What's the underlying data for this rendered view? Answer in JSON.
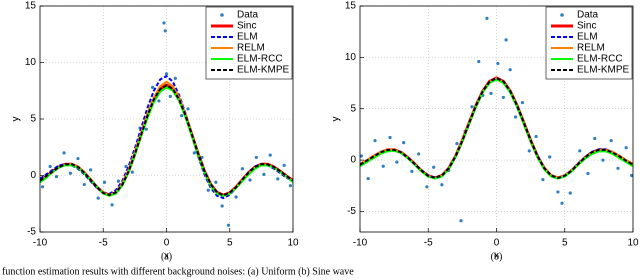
{
  "caption": "function estimation results with different background noises: (a) Uniform (b) Sine wave",
  "chart_data": [
    {
      "type": "line",
      "subcaption": "(a)",
      "xlabel": "x",
      "ylabel": "y",
      "xlim": [
        -10,
        10
      ],
      "ylim": [
        -5,
        15
      ],
      "xticks": [
        -10,
        -5,
        0,
        5,
        10
      ],
      "yticks": [
        -5,
        0,
        5,
        10,
        15
      ],
      "grid": true,
      "legend": "upper right",
      "x": [
        -10,
        -9.5,
        -9,
        -8.5,
        -8,
        -7.5,
        -7,
        -6.5,
        -6,
        -5.5,
        -5,
        -4.5,
        -4,
        -3.5,
        -3,
        -2.5,
        -2,
        -1.5,
        -1,
        -0.5,
        0,
        0.5,
        1,
        1.5,
        2,
        2.5,
        3,
        3.5,
        4,
        4.5,
        5,
        5.5,
        6,
        6.5,
        7,
        7.5,
        8,
        8.5,
        9,
        9.5,
        10
      ],
      "series": [
        {
          "name": "Data",
          "color": "#2f7fc1",
          "mode": "markers",
          "x": [
            -9.8,
            -9.2,
            -8.7,
            -8.1,
            -7.6,
            -7.0,
            -6.5,
            -6.0,
            -5.4,
            -4.9,
            -4.3,
            -3.8,
            -3.2,
            -2.7,
            -2.1,
            -1.6,
            -1.1,
            -0.6,
            -0.2,
            -0.1,
            0.0,
            0.3,
            0.7,
            1.2,
            1.7,
            2.2,
            2.8,
            3.3,
            3.9,
            4.4,
            4.9,
            5.5,
            6.0,
            6.6,
            7.1,
            7.7,
            8.2,
            8.8,
            9.3,
            9.8
          ],
          "values": [
            -1.0,
            0.8,
            -0.1,
            2.0,
            0.2,
            1.5,
            -0.8,
            0.5,
            -2.0,
            -0.6,
            -2.6,
            -0.5,
            0.8,
            0.3,
            4.2,
            4.1,
            7.8,
            6.6,
            13.5,
            12.8,
            9.0,
            7.0,
            8.6,
            5.3,
            5.9,
            2.0,
            1.6,
            -1.3,
            -0.6,
            -2.7,
            -4.4,
            -1.9,
            0.6,
            -0.4,
            1.6,
            0.1,
            1.8,
            -0.3,
            0.9,
            -0.9
          ]
        },
        {
          "name": "Sinc",
          "color": "#ff0000",
          "mode": "lines",
          "dash": false,
          "values": [
            -0.44,
            -0.06,
            0.37,
            0.75,
            0.99,
            1.0,
            0.75,
            0.26,
            -0.37,
            -1.03,
            -1.53,
            -1.74,
            -1.51,
            -0.8,
            0.38,
            1.92,
            3.64,
            5.32,
            6.73,
            7.67,
            8.0,
            7.67,
            6.73,
            5.32,
            3.64,
            1.92,
            0.38,
            -0.8,
            -1.51,
            -1.74,
            -1.53,
            -1.03,
            -0.37,
            0.26,
            0.75,
            1.0,
            0.99,
            0.75,
            0.37,
            -0.06,
            -0.44
          ]
        },
        {
          "name": "ELM",
          "color": "#0000ff",
          "mode": "lines",
          "dash": true,
          "values": [
            -0.3,
            0.1,
            0.5,
            0.9,
            1.0,
            0.9,
            0.6,
            0.1,
            -0.5,
            -1.1,
            -1.5,
            -1.6,
            -1.3,
            -0.5,
            0.8,
            2.4,
            4.2,
            6.0,
            7.5,
            8.5,
            8.8,
            8.3,
            7.1,
            5.5,
            3.6,
            1.7,
            0.1,
            -1.1,
            -1.8,
            -2.0,
            -1.7,
            -1.1,
            -0.4,
            0.3,
            0.8,
            1.0,
            0.9,
            0.6,
            0.2,
            -0.2,
            -0.5
          ]
        },
        {
          "name": "RELM",
          "color": "#ff8000",
          "mode": "lines",
          "dash": false,
          "values": [
            -0.5,
            -0.1,
            0.3,
            0.7,
            0.95,
            1.0,
            0.8,
            0.3,
            -0.3,
            -1.0,
            -1.5,
            -1.7,
            -1.5,
            -0.7,
            0.5,
            2.1,
            3.8,
            5.5,
            6.9,
            7.9,
            8.3,
            7.9,
            6.9,
            5.4,
            3.7,
            1.9,
            0.3,
            -0.9,
            -1.6,
            -1.8,
            -1.6,
            -1.1,
            -0.4,
            0.2,
            0.7,
            0.95,
            0.95,
            0.7,
            0.3,
            -0.1,
            -0.5
          ]
        },
        {
          "name": "ELM-RCC",
          "color": "#00ff00",
          "mode": "lines",
          "dash": false,
          "values": [
            -0.6,
            -0.2,
            0.3,
            0.7,
            0.9,
            0.9,
            0.7,
            0.2,
            -0.4,
            -1.0,
            -1.6,
            -1.8,
            -1.6,
            -0.9,
            0.3,
            1.8,
            3.5,
            5.1,
            6.5,
            7.4,
            7.8,
            7.5,
            6.6,
            5.2,
            3.5,
            1.8,
            0.3,
            -0.9,
            -1.6,
            -1.8,
            -1.6,
            -1.1,
            -0.5,
            0.1,
            0.6,
            0.9,
            0.9,
            0.7,
            0.3,
            -0.1,
            -0.6
          ]
        },
        {
          "name": "ELM-KMPE",
          "color": "#000000",
          "mode": "lines",
          "dash": true,
          "values": [
            -0.45,
            -0.05,
            0.35,
            0.75,
            0.98,
            1.0,
            0.76,
            0.25,
            -0.38,
            -1.02,
            -1.55,
            -1.72,
            -1.5,
            -0.82,
            0.36,
            1.9,
            3.62,
            5.3,
            6.72,
            7.65,
            7.98,
            7.66,
            6.72,
            5.33,
            3.65,
            1.93,
            0.39,
            -0.79,
            -1.5,
            -1.75,
            -1.52,
            -1.04,
            -0.36,
            0.27,
            0.76,
            1.0,
            0.98,
            0.74,
            0.36,
            -0.07,
            -0.45
          ]
        }
      ]
    },
    {
      "type": "line",
      "subcaption": "(b)",
      "xlabel": "x",
      "ylabel": "y",
      "xlim": [
        -10,
        10
      ],
      "ylim": [
        -7,
        15
      ],
      "xticks": [
        -10,
        -5,
        0,
        5,
        10
      ],
      "yticks": [
        -5,
        0,
        5,
        10,
        15
      ],
      "grid": true,
      "legend": "upper right",
      "x": [
        -10,
        -9.5,
        -9,
        -8.5,
        -8,
        -7.5,
        -7,
        -6.5,
        -6,
        -5.5,
        -5,
        -4.5,
        -4,
        -3.5,
        -3,
        -2.5,
        -2,
        -1.5,
        -1,
        -0.5,
        0,
        0.5,
        1,
        1.5,
        2,
        2.5,
        3,
        3.5,
        4,
        4.5,
        5,
        5.5,
        6,
        6.5,
        7,
        7.5,
        8,
        8.5,
        9,
        9.5,
        10
      ],
      "series": [
        {
          "name": "Data",
          "color": "#2f7fc1",
          "mode": "markers",
          "x": [
            -9.9,
            -9.4,
            -8.9,
            -8.3,
            -7.8,
            -7.3,
            -6.8,
            -6.2,
            -5.7,
            -5.1,
            -4.6,
            -4.0,
            -3.5,
            -2.9,
            -2.6,
            -2.3,
            -1.8,
            -1.3,
            -1.0,
            -0.7,
            -0.4,
            0.1,
            0.5,
            0.7,
            1.0,
            1.4,
            1.9,
            2.4,
            2.9,
            3.4,
            3.9,
            4.5,
            4.8,
            5.4,
            6.1,
            6.7,
            7.2,
            7.8,
            8.4,
            8.9,
            9.5,
            9.9
          ],
          "values": [
            0.4,
            -1.8,
            1.9,
            -0.6,
            2.2,
            -0.2,
            1.7,
            -1.1,
            0.6,
            -2.6,
            -0.7,
            -2.4,
            -1.0,
            1.6,
            -5.9,
            2.8,
            5.2,
            9.6,
            6.3,
            13.8,
            6.5,
            9.4,
            6.1,
            11.7,
            8.8,
            4.2,
            5.6,
            0.9,
            2.3,
            -1.9,
            0.3,
            -3.1,
            -4.2,
            -3.2,
            0.9,
            -1.3,
            2.1,
            0.0,
            1.9,
            -0.8,
            1.2,
            -1.5
          ]
        },
        {
          "name": "Sinc",
          "color": "#ff0000",
          "mode": "lines",
          "dash": false,
          "values": [
            -0.44,
            -0.06,
            0.37,
            0.75,
            0.99,
            1.0,
            0.75,
            0.26,
            -0.37,
            -1.03,
            -1.53,
            -1.74,
            -1.51,
            -0.8,
            0.38,
            1.92,
            3.64,
            5.32,
            6.73,
            7.67,
            8.0,
            7.67,
            6.73,
            5.32,
            3.64,
            1.92,
            0.38,
            -0.8,
            -1.51,
            -1.74,
            -1.53,
            -1.03,
            -0.37,
            0.26,
            0.75,
            1.0,
            0.99,
            0.75,
            0.37,
            -0.06,
            -0.44
          ]
        },
        {
          "name": "ELM",
          "color": "#0000ff",
          "mode": "lines",
          "dash": true,
          "values": [
            -0.5,
            -0.1,
            0.3,
            0.7,
            0.95,
            0.95,
            0.7,
            0.2,
            -0.4,
            -1.0,
            -1.5,
            -1.7,
            -1.5,
            -0.8,
            0.4,
            1.9,
            3.6,
            5.3,
            6.7,
            7.6,
            7.9,
            7.6,
            6.7,
            5.3,
            3.6,
            1.9,
            0.4,
            -0.8,
            -1.5,
            -1.7,
            -1.5,
            -1.0,
            -0.3,
            0.3,
            0.8,
            1.05,
            1.05,
            0.8,
            0.4,
            -0.1,
            -0.5
          ]
        },
        {
          "name": "RELM",
          "color": "#ff8000",
          "mode": "lines",
          "dash": false,
          "values": [
            -0.4,
            0.0,
            0.4,
            0.8,
            1.0,
            1.0,
            0.75,
            0.25,
            -0.4,
            -1.05,
            -1.55,
            -1.75,
            -1.5,
            -0.8,
            0.4,
            1.95,
            3.65,
            5.3,
            6.7,
            7.6,
            7.95,
            7.6,
            6.7,
            5.3,
            3.6,
            1.9,
            0.35,
            -0.8,
            -1.5,
            -1.7,
            -1.5,
            -1.0,
            -0.35,
            0.25,
            0.75,
            1.0,
            1.0,
            0.8,
            0.4,
            0.0,
            -0.4
          ]
        },
        {
          "name": "ELM-RCC",
          "color": "#00ff00",
          "mode": "lines",
          "dash": false,
          "values": [
            -0.6,
            -0.2,
            0.2,
            0.6,
            0.85,
            0.9,
            0.7,
            0.2,
            -0.45,
            -1.1,
            -1.6,
            -1.8,
            -1.6,
            -0.9,
            0.3,
            1.85,
            3.55,
            5.2,
            6.6,
            7.5,
            7.85,
            7.5,
            6.6,
            5.2,
            3.55,
            1.85,
            0.3,
            -0.9,
            -1.6,
            -1.8,
            -1.6,
            -1.1,
            -0.45,
            0.15,
            0.6,
            0.85,
            0.85,
            0.6,
            0.2,
            -0.2,
            -0.6
          ]
        },
        {
          "name": "ELM-KMPE",
          "color": "#000000",
          "mode": "lines",
          "dash": true,
          "values": [
            -0.45,
            -0.05,
            0.35,
            0.75,
            0.98,
            1.0,
            0.76,
            0.25,
            -0.38,
            -1.02,
            -1.55,
            -1.72,
            -1.5,
            -0.82,
            0.36,
            1.9,
            3.62,
            5.3,
            6.72,
            7.65,
            7.98,
            7.66,
            6.72,
            5.33,
            3.65,
            1.93,
            0.39,
            -0.79,
            -1.5,
            -1.75,
            -1.52,
            -1.04,
            -0.36,
            0.27,
            0.76,
            1.0,
            0.98,
            0.74,
            0.36,
            -0.07,
            -0.45
          ]
        }
      ]
    }
  ]
}
